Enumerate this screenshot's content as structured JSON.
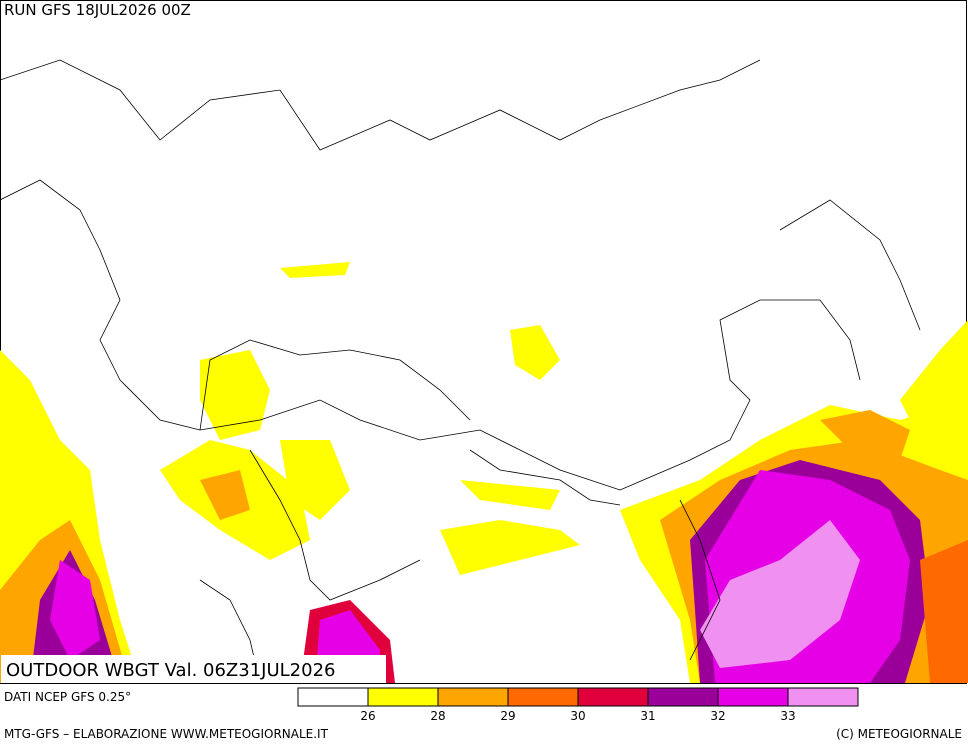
{
  "header": {
    "run": "RUN GFS 18JUL2026 00Z"
  },
  "map": {
    "title": "OUTDOOR WBGT Val. 06Z31JUL2026"
  },
  "legend": {
    "source": "DATI NCEP GFS 0.25°",
    "colors": [
      "#ffffff",
      "#ffff00",
      "#ffa500",
      "#ff6a00",
      "#e0003c",
      "#9a0099",
      "#e600e6",
      "#f090f0"
    ],
    "ticks": [
      26,
      28,
      29,
      30,
      31,
      32,
      33
    ]
  },
  "footer": {
    "left": "MTG-GFS – ELABORAZIONE WWW.METEOGIORNALE.IT",
    "right": "(C) METEOGIORNALE"
  }
}
